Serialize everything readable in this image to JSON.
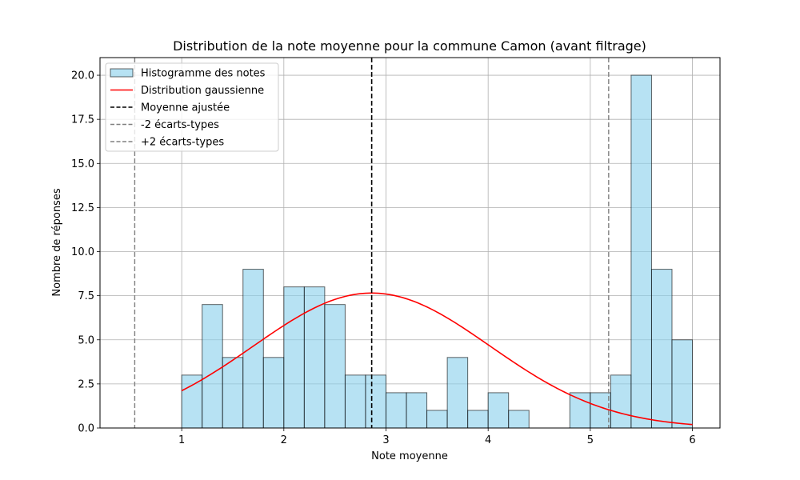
{
  "chart_data": {
    "type": "bar",
    "title": "Distribution de la note moyenne pour la commune Camon (avant filtrage)",
    "xlabel": "Note moyenne",
    "ylabel": "Nombre de réponses",
    "xlim": [
      0.2,
      6.27
    ],
    "ylim": [
      0,
      21
    ],
    "xticks": [
      "1",
      "2",
      "3",
      "4",
      "5",
      "6"
    ],
    "yticks": [
      "0.0",
      "2.5",
      "5.0",
      "7.5",
      "10.0",
      "12.5",
      "15.0",
      "17.5",
      "20.0"
    ],
    "grid": true,
    "legend_position": "top-left",
    "histogram": {
      "name": "Histogramme des notes",
      "color": "#87ceeb",
      "edge_color": "#000000",
      "bin_edges": [
        1.0,
        1.2,
        1.4,
        1.6,
        1.8,
        2.0,
        2.2,
        2.4,
        2.6,
        2.8,
        3.0,
        3.2,
        3.4,
        3.6,
        3.8,
        4.0,
        4.2,
        4.4,
        4.6,
        4.8,
        5.0,
        5.2,
        5.4,
        5.6,
        5.8,
        6.0
      ],
      "counts": [
        3,
        7,
        4,
        9,
        4,
        8,
        8,
        7,
        3,
        3,
        2,
        2,
        1,
        4,
        1,
        2,
        1,
        0,
        0,
        2,
        2,
        3,
        20,
        9,
        5
      ]
    },
    "gaussian": {
      "name": "Distribution gaussienne",
      "color": "#ff0000",
      "mean": 2.86,
      "std": 1.16,
      "peak": 7.65,
      "x_range": [
        1.0,
        6.0
      ]
    },
    "vlines": [
      {
        "name": "Moyenne ajustée",
        "value": 2.86,
        "color": "#000000",
        "style": "dashed"
      },
      {
        "name": "-2 écarts-types",
        "value": 0.54,
        "color": "#808080",
        "style": "dashed"
      },
      {
        "name": "+2 écarts-types",
        "value": 5.18,
        "color": "#808080",
        "style": "dashed"
      }
    ]
  }
}
